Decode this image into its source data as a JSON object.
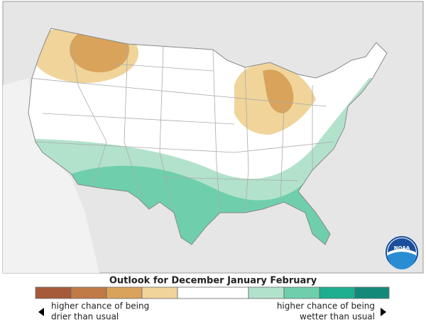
{
  "map": {
    "logo": "NOAA",
    "title": "Outlook for December January February",
    "legend": {
      "drier_label": [
        "higher chance of being",
        "drier than usual"
      ],
      "wetter_label": [
        "higher chance of being",
        "wetter than usual"
      ]
    }
  }
}
